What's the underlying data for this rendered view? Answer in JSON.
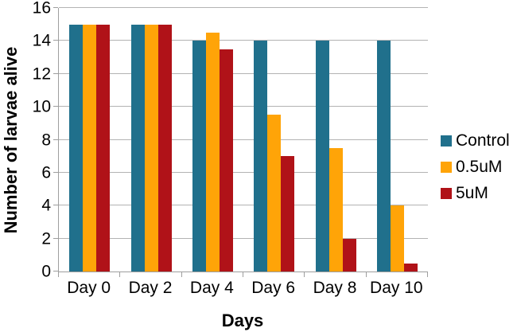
{
  "chart_data": {
    "type": "bar",
    "title": "",
    "categories": [
      "Day 0",
      "Day 2",
      "Day 4",
      "Day 6",
      "Day 8",
      "Day 10"
    ],
    "series": [
      {
        "name": "Control",
        "color": "#20708c",
        "values": [
          15,
          15,
          14,
          14,
          14,
          14
        ]
      },
      {
        "name": "0.5uM",
        "color": "#ffa408",
        "values": [
          15,
          15,
          14.5,
          9.5,
          7.5,
          4
        ]
      },
      {
        "name": "5uM",
        "color": "#b01218",
        "values": [
          15,
          15,
          13.5,
          7,
          2,
          0.5
        ]
      }
    ],
    "xlabel": "Days",
    "ylabel": "Number of larvae alive",
    "ylim": [
      0,
      16
    ],
    "ytick_step": 2,
    "y_tick_labels": [
      "0",
      "2",
      "4",
      "6",
      "8",
      "10",
      "12",
      "14",
      "16"
    ],
    "grid": true,
    "legend_position": "right",
    "colors": {
      "axis_line": "#9e9e9e",
      "gridline": "#b3b3b3",
      "text": "#000000"
    }
  }
}
